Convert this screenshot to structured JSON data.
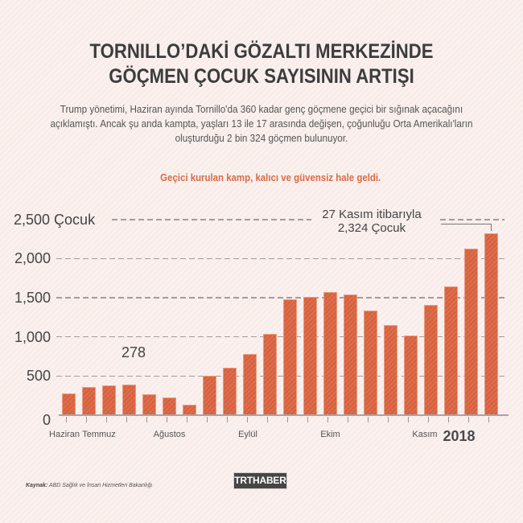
{
  "header": {
    "title_line1": "TORNILLO’DAKİ GÖZALTI MERKEZİNDE",
    "title_line2": "GÖÇMEN ÇOCUK SAYISININ ARTIŞI"
  },
  "intro": {
    "lines": [
      "Trump yönetimi, Haziran ayında Tornillo'da 360 kadar genç göçmene geçici bir sığınak açacağını",
      "açıklamıştı. Ancak şu anda kampta, yaşları 13 ile 17 arasında değişen, çoğunluğu Orta Amerikalı'ların",
      "oluşturduğu 2 bin 324 göçmen bulunuyor."
    ]
  },
  "subtitle": "Geçici kurulan kamp, kalıcı ve güvensiz hale geldi.",
  "annotations": {
    "low_value": "278",
    "peak_line1": "27 Kasım itibarıyla",
    "peak_line2": "2,324 Çocuk"
  },
  "footer": {
    "source_label": "Kaynak:",
    "source_text": "ABD Sağlık ve İnsan Hizmetleri Bakanlığı",
    "logo_text": "TRTHABER"
  },
  "colors": {
    "background": "#f8ebe8",
    "bar": "#dc6441",
    "bar_border": "#eb9c7f",
    "title": "#3c3c3c",
    "subtitle": "#d96c48",
    "gridline": "#a39c9b",
    "logo_bg": "#464646"
  },
  "chart_data": {
    "type": "bar",
    "title": "TORNILLO’DAKİ GÖZALTI MERKEZİNDE GÖÇMEN ÇOCUK SAYISININ ARTIŞI",
    "subtitle": "Geçici kurulan kamp, kalıcı ve güvensiz hale geldi.",
    "xlabel": "",
    "ylabel": "Çocuk",
    "ylim": [
      0,
      2500
    ],
    "grid": true,
    "legend": null,
    "categories": [
      "1",
      "2",
      "3",
      "4",
      "5",
      "6",
      "7",
      "8",
      "9",
      "10",
      "11",
      "12",
      "13",
      "14",
      "15",
      "16",
      "17",
      "18",
      "19",
      "20",
      "21",
      "22"
    ],
    "values": [
      280,
      360,
      380,
      390,
      270,
      230,
      130,
      500,
      610,
      785,
      1035,
      1480,
      1510,
      1575,
      1540,
      1335,
      1155,
      1015,
      1410,
      1640,
      2130,
      2324
    ],
    "y_ticks": [
      0,
      500,
      1000,
      1500,
      2000,
      2500
    ],
    "y_tick_labels": [
      "0",
      "500",
      "1,000",
      "1,500",
      "2,000",
      "2,500 Çocuk"
    ],
    "x_group_labels": [
      {
        "label": "Haziran",
        "position": -0.22
      },
      {
        "label": "Temmuz",
        "position": 1.5
      },
      {
        "label": "Ağustos",
        "position": 5.0
      },
      {
        "label": "Eylül",
        "position": 8.9
      },
      {
        "label": "Ekim",
        "position": 13.0
      },
      {
        "label": "Kasım",
        "position": 17.7
      }
    ],
    "year_label": {
      "label": "2018",
      "position": 19.4
    },
    "annotations": [
      {
        "text": "278"
      },
      {
        "text": "27 Kasım itibarıyla 2,324 Çocuk",
        "bar_index": 21
      }
    ],
    "source": "Kaynak: ABD Sağlık ve İnsan Hizmetleri Bakanlığı"
  }
}
